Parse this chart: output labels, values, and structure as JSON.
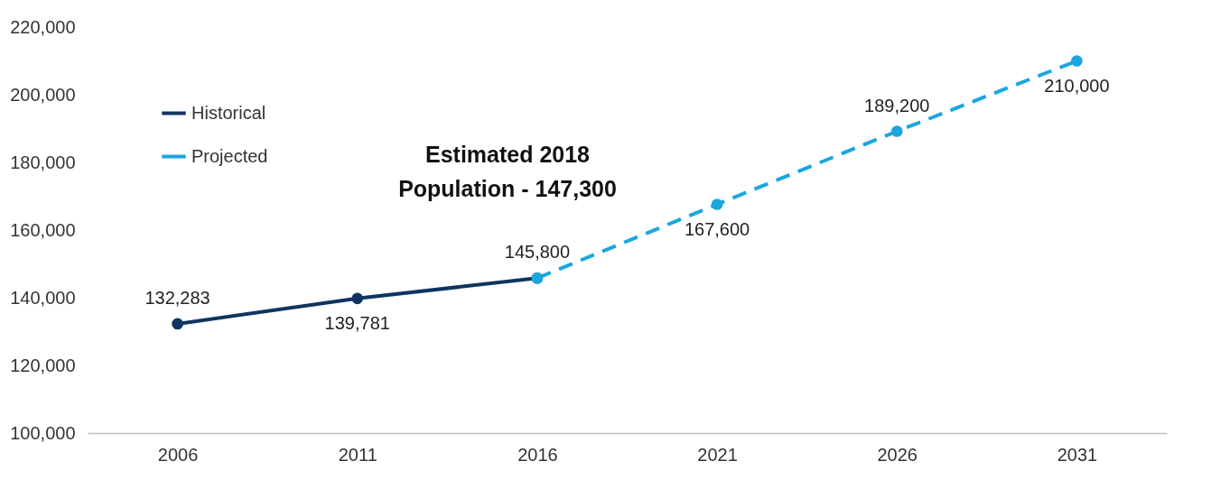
{
  "chart_data": {
    "type": "line",
    "categories": [
      "2006",
      "2011",
      "2016",
      "2021",
      "2026",
      "2031"
    ],
    "series": [
      {
        "name": "Historical",
        "color": "#0e3560",
        "line_style": "solid",
        "values": [
          132283,
          139781,
          145800,
          null,
          null,
          null
        ],
        "value_labels": [
          "132,283",
          "139,781",
          "145,800",
          null,
          null,
          null
        ]
      },
      {
        "name": "Projected",
        "color": "#1ba6e0",
        "line_style": "dashed",
        "values": [
          null,
          null,
          145800,
          167600,
          189200,
          210000
        ],
        "value_labels": [
          null,
          null,
          null,
          "167,600",
          "189,200",
          "210,000"
        ]
      }
    ],
    "ylim": [
      100000,
      220000
    ],
    "yticks": [
      {
        "value": 100000,
        "label": "100,000"
      },
      {
        "value": 120000,
        "label": "120,000"
      },
      {
        "value": 140000,
        "label": "140,000"
      },
      {
        "value": 160000,
        "label": "160,000"
      },
      {
        "value": 180000,
        "label": "180,000"
      },
      {
        "value": 200000,
        "label": "200,000"
      },
      {
        "value": 220000,
        "label": "220,000"
      }
    ],
    "grid": false,
    "legend": "top left",
    "marker": "circle",
    "annotations": [
      "Estimated 2018 Population - 147,300"
    ]
  }
}
